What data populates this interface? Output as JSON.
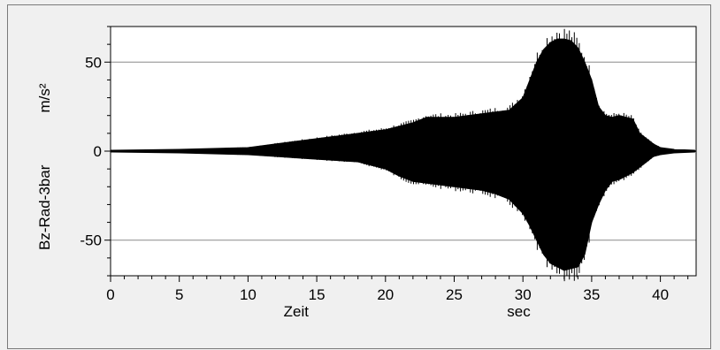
{
  "chart_data": {
    "type": "line",
    "xlabel": "Zeit",
    "xunit": "sec",
    "ylabel": "Bz-Rad-3bar",
    "yunit": "m/s²",
    "xlim": [
      0,
      42.6
    ],
    "ylim": [
      -70,
      70
    ],
    "xticks": [
      0,
      5,
      10,
      15,
      20,
      25,
      30,
      35,
      40
    ],
    "yticks": [
      -50,
      0,
      50
    ],
    "grid_y": [
      -50,
      50
    ],
    "series": [
      {
        "color": "#000000",
        "envelope": {
          "t": [
            0,
            5,
            10,
            12,
            14,
            16,
            18,
            20,
            21,
            22,
            23,
            24,
            25,
            26,
            27,
            28,
            29,
            30,
            30.5,
            31,
            31.5,
            32,
            32.5,
            33,
            33.5,
            34,
            34.5,
            35,
            35.5,
            36,
            36.5,
            37,
            37.5,
            38,
            38.5,
            39,
            39.5,
            40,
            41,
            42.5
          ],
          "upper": [
            0.5,
            1,
            2,
            4,
            6,
            8,
            10,
            12,
            14,
            16,
            19,
            19,
            19,
            20,
            21,
            22,
            23,
            30,
            40,
            50,
            57,
            61,
            63,
            63,
            62,
            58,
            50,
            40,
            25,
            20,
            19,
            20,
            19,
            18,
            10,
            7,
            4,
            2,
            1,
            0.5
          ],
          "lower": [
            -0.5,
            -1,
            -2,
            -3,
            -4,
            -5,
            -6,
            -10,
            -14,
            -17,
            -18,
            -19,
            -20,
            -21,
            -22,
            -24,
            -27,
            -35,
            -42,
            -50,
            -58,
            -63,
            -65,
            -67,
            -66,
            -65,
            -58,
            -40,
            -30,
            -22,
            -17,
            -16,
            -14,
            -12,
            -9,
            -6,
            -3,
            -2,
            -1,
            -0.5
          ]
        }
      }
    ]
  }
}
